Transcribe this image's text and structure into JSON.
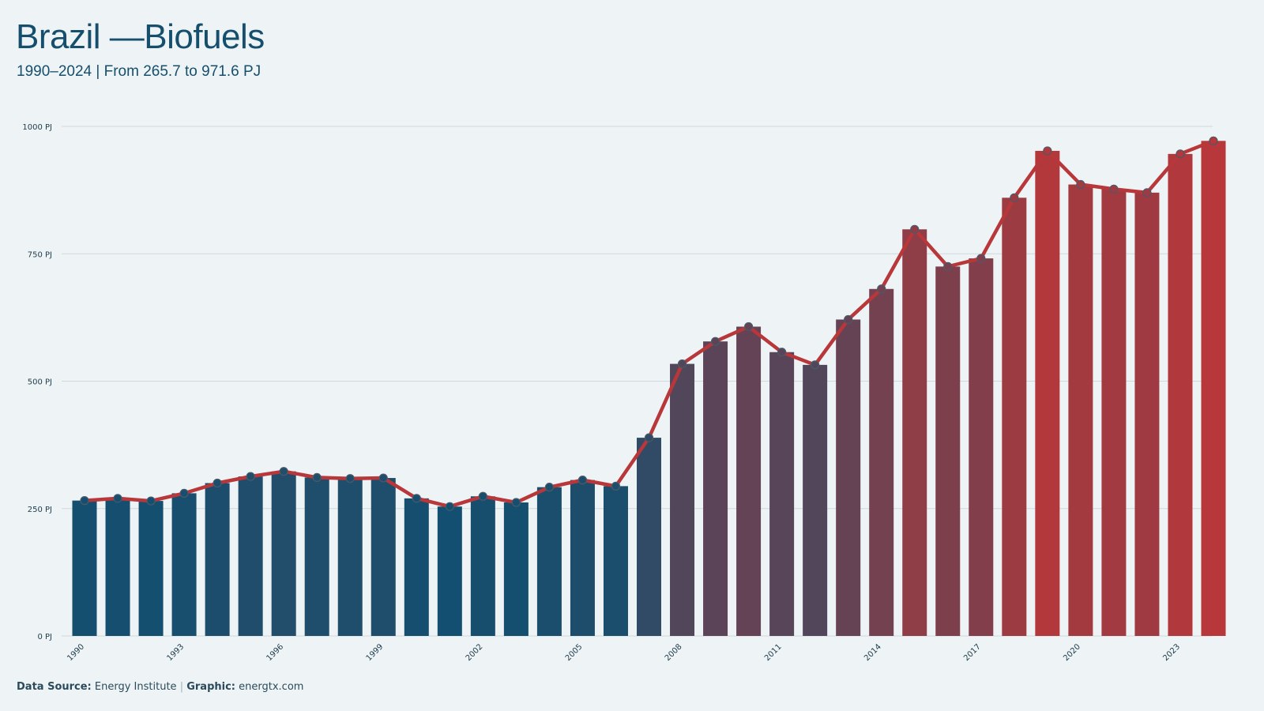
{
  "header": {
    "title": "Brazil —Biofuels",
    "subtitle": "1990–2024 | From 265.7 to 971.6 PJ"
  },
  "footer": {
    "source_label": "Data Source:",
    "source_value": "Energy Institute",
    "separator": "|",
    "graphic_label": "Graphic:",
    "graphic_value": "energtx.com"
  },
  "colors": {
    "low": "#124f70",
    "high": "#b7373a",
    "line": "#b7373a",
    "grid": "#cfd8dc",
    "axis_text": "#1e3a4c"
  },
  "chart_data": {
    "type": "bar",
    "title": "Brazil —Biofuels",
    "subtitle": "1990–2024 | From 265.7 to 971.6 PJ",
    "unit": "PJ",
    "ylim": [
      0,
      1000
    ],
    "y_ticks": [
      0,
      250,
      500,
      750,
      1000
    ],
    "y_tick_labels": [
      "0 PJ",
      "250 PJ",
      "500 PJ",
      "750 PJ",
      "1000 PJ"
    ],
    "x_tick_labels": [
      "1990",
      "1993",
      "1996",
      "1999",
      "2002",
      "2005",
      "2008",
      "2011",
      "2014",
      "2017",
      "2020",
      "2023"
    ],
    "grid": true,
    "legend": "none",
    "categories": [
      "1990",
      "1991",
      "1992",
      "1993",
      "1994",
      "1995",
      "1996",
      "1997",
      "1998",
      "1999",
      "2000",
      "2001",
      "2002",
      "2003",
      "2004",
      "2005",
      "2006",
      "2007",
      "2008",
      "2009",
      "2010",
      "2011",
      "2012",
      "2013",
      "2014",
      "2015",
      "2016",
      "2017",
      "2018",
      "2019",
      "2020",
      "2021",
      "2022",
      "2023",
      "2024"
    ],
    "values": [
      265.7,
      270,
      265,
      280,
      300,
      313,
      323,
      311,
      309,
      310,
      270,
      254,
      274,
      262,
      292,
      306,
      294,
      389,
      534,
      578,
      607,
      557,
      532,
      621,
      681,
      798,
      725,
      741,
      860,
      952,
      886,
      877,
      870,
      946,
      971.6
    ],
    "overlay": "line with point markers over bars, same values"
  }
}
